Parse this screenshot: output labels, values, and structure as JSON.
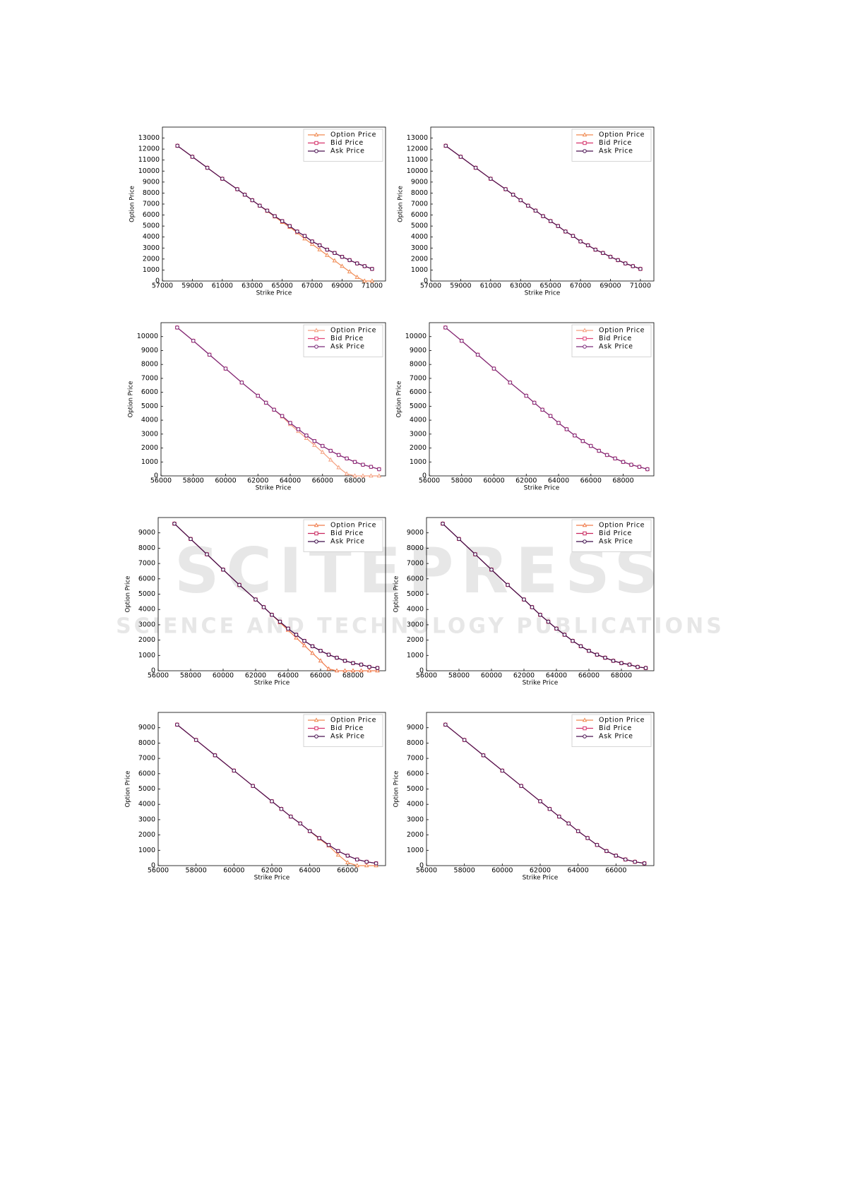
{
  "watermark": {
    "title": "SCITEPRESS",
    "subtitle": "SCIENCE AND TECHNOLOGY PUBLICATIONS"
  },
  "chart_data": [
    {
      "type": "line",
      "xlabel": "Strike Price",
      "ylabel": "Option Price",
      "legend": "upper right",
      "xlim": [
        57000,
        71900
      ],
      "xticks": [
        57000,
        59000,
        61000,
        63000,
        65000,
        67000,
        69000,
        71000
      ],
      "ylim": [
        0,
        14000
      ],
      "yticks": [
        0,
        1000,
        2000,
        3000,
        4000,
        5000,
        6000,
        7000,
        8000,
        9000,
        10000,
        11000,
        12000,
        13000
      ],
      "x": [
        58000,
        59000,
        60000,
        61000,
        62000,
        62500,
        63000,
        63500,
        64000,
        64500,
        65000,
        65500,
        66000,
        66500,
        67000,
        67500,
        68000,
        68500,
        69000,
        69500,
        70000,
        70500,
        71000
      ],
      "series": [
        {
          "name": "Option Price",
          "color": "#f08a52",
          "values": [
            12300,
            11300,
            10300,
            9300,
            8350,
            7850,
            7350,
            6850,
            6350,
            5850,
            5350,
            4900,
            4400,
            3850,
            3350,
            2850,
            2350,
            1850,
            1350,
            850,
            350,
            0,
            0
          ]
        },
        {
          "name": "Bid Price",
          "color": "#d6336c",
          "values": [
            12300,
            11300,
            10300,
            9300,
            8350,
            7850,
            7350,
            6850,
            6400,
            5900,
            5450,
            5000,
            4500,
            4100,
            3600,
            3250,
            2850,
            2550,
            2200,
            1900,
            1600,
            1350,
            1100
          ]
        },
        {
          "name": "Ask Price",
          "color": "#4b1352",
          "values": [
            12300,
            11300,
            10300,
            9300,
            8350,
            7850,
            7350,
            6850,
            6400,
            5900,
            5450,
            5000,
            4500,
            4100,
            3600,
            3250,
            2850,
            2550,
            2200,
            1900,
            1600,
            1350,
            1100
          ]
        }
      ]
    },
    {
      "type": "line",
      "xlabel": "Strike Price",
      "ylabel": "Option Price",
      "legend": "upper right",
      "xlim": [
        57000,
        71900
      ],
      "xticks": [
        57000,
        59000,
        61000,
        63000,
        65000,
        67000,
        69000,
        71000
      ],
      "ylim": [
        0,
        14000
      ],
      "yticks": [
        0,
        1000,
        2000,
        3000,
        4000,
        5000,
        6000,
        7000,
        8000,
        9000,
        10000,
        11000,
        12000,
        13000
      ],
      "x": [
        58000,
        59000,
        60000,
        61000,
        62000,
        62500,
        63000,
        63500,
        64000,
        64500,
        65000,
        65500,
        66000,
        66500,
        67000,
        67500,
        68000,
        68500,
        69000,
        69500,
        70000,
        70500,
        71000
      ],
      "series": [
        {
          "name": "Option Price",
          "color": "#f08a52",
          "values": [
            12300,
            11300,
            10300,
            9300,
            8350,
            7850,
            7350,
            6850,
            6400,
            5900,
            5450,
            5000,
            4500,
            4100,
            3600,
            3250,
            2850,
            2550,
            2200,
            1900,
            1600,
            1350,
            1100
          ]
        },
        {
          "name": "Bid Price",
          "color": "#d6336c",
          "values": [
            12300,
            11300,
            10300,
            9300,
            8350,
            7850,
            7350,
            6850,
            6400,
            5900,
            5450,
            5000,
            4500,
            4100,
            3600,
            3250,
            2850,
            2550,
            2200,
            1900,
            1600,
            1350,
            1100
          ]
        },
        {
          "name": "Ask Price",
          "color": "#4b1352",
          "values": [
            12300,
            11300,
            10300,
            9300,
            8350,
            7850,
            7350,
            6850,
            6400,
            5900,
            5450,
            5000,
            4500,
            4100,
            3600,
            3250,
            2850,
            2550,
            2200,
            1900,
            1600,
            1350,
            1100
          ]
        }
      ]
    },
    {
      "type": "line",
      "xlabel": "Strike Price",
      "ylabel": "Option Price",
      "legend": "upper right",
      "xlim": [
        56000,
        69900
      ],
      "xticks": [
        56000,
        58000,
        60000,
        62000,
        64000,
        66000,
        68000
      ],
      "ylim": [
        0,
        11000
      ],
      "yticks": [
        0,
        1000,
        2000,
        3000,
        4000,
        5000,
        6000,
        7000,
        8000,
        9000,
        10000
      ],
      "x": [
        57000,
        58000,
        59000,
        60000,
        61000,
        62000,
        62500,
        63000,
        63500,
        64000,
        64500,
        65000,
        65500,
        66000,
        66500,
        67000,
        67500,
        68000,
        68500,
        69000,
        69500
      ],
      "series": [
        {
          "name": "Option Price",
          "color": "#f5a080",
          "values": [
            10650,
            9700,
            8700,
            7700,
            6700,
            5750,
            5250,
            4750,
            4250,
            3700,
            3200,
            2700,
            2200,
            1700,
            1150,
            600,
            150,
            0,
            0,
            0,
            0
          ]
        },
        {
          "name": "Bid Price",
          "color": "#e0457a",
          "values": [
            10650,
            9700,
            8700,
            7700,
            6700,
            5750,
            5250,
            4750,
            4300,
            3800,
            3350,
            2900,
            2500,
            2150,
            1800,
            1500,
            1250,
            1000,
            800,
            650,
            480
          ]
        },
        {
          "name": "Ask Price",
          "color": "#7a2a7a",
          "values": [
            10650,
            9700,
            8700,
            7700,
            6700,
            5750,
            5250,
            4750,
            4300,
            3800,
            3350,
            2900,
            2500,
            2150,
            1800,
            1500,
            1250,
            1000,
            800,
            650,
            480
          ]
        }
      ]
    },
    {
      "type": "line",
      "xlabel": "Strike Price",
      "ylabel": "Option Price",
      "legend": "upper right",
      "xlim": [
        56000,
        69900
      ],
      "xticks": [
        56000,
        58000,
        60000,
        62000,
        64000,
        66000,
        68000
      ],
      "ylim": [
        0,
        11000
      ],
      "yticks": [
        0,
        1000,
        2000,
        3000,
        4000,
        5000,
        6000,
        7000,
        8000,
        9000,
        10000
      ],
      "x": [
        57000,
        58000,
        59000,
        60000,
        61000,
        62000,
        62500,
        63000,
        63500,
        64000,
        64500,
        65000,
        65500,
        66000,
        66500,
        67000,
        67500,
        68000,
        68500,
        69000,
        69500
      ],
      "series": [
        {
          "name": "Option Price",
          "color": "#f5a080",
          "values": [
            10650,
            9700,
            8700,
            7700,
            6700,
            5750,
            5250,
            4750,
            4300,
            3800,
            3350,
            2900,
            2500,
            2150,
            1800,
            1500,
            1250,
            1000,
            800,
            650,
            480
          ]
        },
        {
          "name": "Bid Price",
          "color": "#e0457a",
          "values": [
            10650,
            9700,
            8700,
            7700,
            6700,
            5750,
            5250,
            4750,
            4300,
            3800,
            3350,
            2900,
            2500,
            2150,
            1800,
            1500,
            1250,
            1000,
            800,
            650,
            480
          ]
        },
        {
          "name": "Ask Price",
          "color": "#7a2a7a",
          "values": [
            10650,
            9700,
            8700,
            7700,
            6700,
            5750,
            5250,
            4750,
            4300,
            3800,
            3350,
            2900,
            2500,
            2150,
            1800,
            1500,
            1250,
            1000,
            800,
            650,
            480
          ]
        }
      ]
    },
    {
      "type": "line",
      "xlabel": "Strike Price",
      "ylabel": "Option Price",
      "legend": "upper right",
      "xlim": [
        56000,
        70000
      ],
      "xticks": [
        56000,
        58000,
        60000,
        62000,
        64000,
        66000,
        68000
      ],
      "ylim": [
        0,
        10000
      ],
      "yticks": [
        0,
        1000,
        2000,
        3000,
        4000,
        5000,
        6000,
        7000,
        8000,
        9000
      ],
      "x": [
        57000,
        58000,
        59000,
        60000,
        61000,
        62000,
        62500,
        63000,
        63500,
        64000,
        64500,
        65000,
        65500,
        66000,
        66500,
        67000,
        67500,
        68000,
        68500,
        69000,
        69500
      ],
      "series": [
        {
          "name": "Option Price",
          "color": "#f07a4a",
          "values": [
            9600,
            8600,
            7600,
            6600,
            5600,
            4650,
            4150,
            3650,
            3150,
            2650,
            2150,
            1650,
            1150,
            650,
            120,
            0,
            0,
            0,
            0,
            0,
            0
          ]
        },
        {
          "name": "Bid Price",
          "color": "#c9265e",
          "values": [
            9600,
            8600,
            7600,
            6600,
            5600,
            4650,
            4150,
            3650,
            3200,
            2750,
            2350,
            1950,
            1600,
            1300,
            1050,
            850,
            650,
            500,
            400,
            250,
            180
          ]
        },
        {
          "name": "Ask Price",
          "color": "#3d0d4a",
          "values": [
            9600,
            8600,
            7600,
            6600,
            5600,
            4650,
            4150,
            3650,
            3200,
            2750,
            2350,
            1950,
            1600,
            1300,
            1050,
            850,
            650,
            500,
            400,
            250,
            180
          ]
        }
      ]
    },
    {
      "type": "line",
      "xlabel": "Strike Price",
      "ylabel": "Option Price",
      "legend": "upper right",
      "xlim": [
        56000,
        70000
      ],
      "xticks": [
        56000,
        58000,
        60000,
        62000,
        64000,
        66000,
        68000
      ],
      "ylim": [
        0,
        10000
      ],
      "yticks": [
        0,
        1000,
        2000,
        3000,
        4000,
        5000,
        6000,
        7000,
        8000,
        9000
      ],
      "x": [
        57000,
        58000,
        59000,
        60000,
        61000,
        62000,
        62500,
        63000,
        63500,
        64000,
        64500,
        65000,
        65500,
        66000,
        66500,
        67000,
        67500,
        68000,
        68500,
        69000,
        69500
      ],
      "series": [
        {
          "name": "Option Price",
          "color": "#f07a4a",
          "values": [
            9600,
            8600,
            7600,
            6600,
            5600,
            4650,
            4150,
            3650,
            3200,
            2750,
            2350,
            1950,
            1600,
            1300,
            1050,
            850,
            650,
            500,
            400,
            250,
            180
          ]
        },
        {
          "name": "Bid Price",
          "color": "#c9265e",
          "values": [
            9600,
            8600,
            7600,
            6600,
            5600,
            4650,
            4150,
            3650,
            3200,
            2750,
            2350,
            1950,
            1600,
            1300,
            1050,
            850,
            650,
            500,
            400,
            250,
            180
          ]
        },
        {
          "name": "Ask Price",
          "color": "#3d0d4a",
          "values": [
            9600,
            8600,
            7600,
            6600,
            5600,
            4650,
            4150,
            3650,
            3200,
            2750,
            2350,
            1950,
            1600,
            1300,
            1050,
            850,
            650,
            500,
            400,
            250,
            180
          ]
        }
      ]
    },
    {
      "type": "line",
      "xlabel": "Strike Price",
      "ylabel": "Option Price",
      "legend": "upper right",
      "xlim": [
        56000,
        68000
      ],
      "xticks": [
        56000,
        58000,
        60000,
        62000,
        64000,
        66000
      ],
      "ylim": [
        0,
        10000
      ],
      "yticks": [
        0,
        1000,
        2000,
        3000,
        4000,
        5000,
        6000,
        7000,
        8000,
        9000
      ],
      "x": [
        57000,
        58000,
        59000,
        60000,
        61000,
        62000,
        62500,
        63000,
        63500,
        64000,
        64500,
        65000,
        65500,
        66000,
        66500,
        67000,
        67500
      ],
      "series": [
        {
          "name": "Option Price",
          "color": "#f08a52",
          "values": [
            9200,
            8200,
            7200,
            6200,
            5200,
            4200,
            3700,
            3200,
            2750,
            2250,
            1750,
            1300,
            700,
            200,
            0,
            0,
            0
          ]
        },
        {
          "name": "Bid Price",
          "color": "#d6336c",
          "values": [
            9200,
            8200,
            7200,
            6200,
            5200,
            4200,
            3700,
            3200,
            2750,
            2250,
            1800,
            1350,
            950,
            650,
            400,
            250,
            150
          ]
        },
        {
          "name": "Ask Price",
          "color": "#4b1352",
          "values": [
            9200,
            8200,
            7200,
            6200,
            5200,
            4200,
            3700,
            3200,
            2750,
            2250,
            1800,
            1350,
            950,
            650,
            400,
            250,
            150
          ]
        }
      ]
    },
    {
      "type": "line",
      "xlabel": "Strike Price",
      "ylabel": "Option Price",
      "legend": "upper right",
      "xlim": [
        56000,
        68000
      ],
      "xticks": [
        56000,
        58000,
        60000,
        62000,
        64000,
        66000
      ],
      "ylim": [
        0,
        10000
      ],
      "yticks": [
        0,
        1000,
        2000,
        3000,
        4000,
        5000,
        6000,
        7000,
        8000,
        9000
      ],
      "x": [
        57000,
        58000,
        59000,
        60000,
        61000,
        62000,
        62500,
        63000,
        63500,
        64000,
        64500,
        65000,
        65500,
        66000,
        66500,
        67000,
        67500
      ],
      "series": [
        {
          "name": "Option Price",
          "color": "#f08a52",
          "values": [
            9200,
            8200,
            7200,
            6200,
            5200,
            4200,
            3700,
            3200,
            2750,
            2250,
            1800,
            1350,
            950,
            650,
            400,
            250,
            150
          ]
        },
        {
          "name": "Bid Price",
          "color": "#d6336c",
          "values": [
            9200,
            8200,
            7200,
            6200,
            5200,
            4200,
            3700,
            3200,
            2750,
            2250,
            1800,
            1350,
            950,
            650,
            400,
            250,
            150
          ]
        },
        {
          "name": "Ask Price",
          "color": "#4b1352",
          "values": [
            9200,
            8200,
            7200,
            6200,
            5200,
            4200,
            3700,
            3200,
            2750,
            2250,
            1800,
            1350,
            950,
            650,
            400,
            250,
            150
          ]
        }
      ]
    }
  ]
}
